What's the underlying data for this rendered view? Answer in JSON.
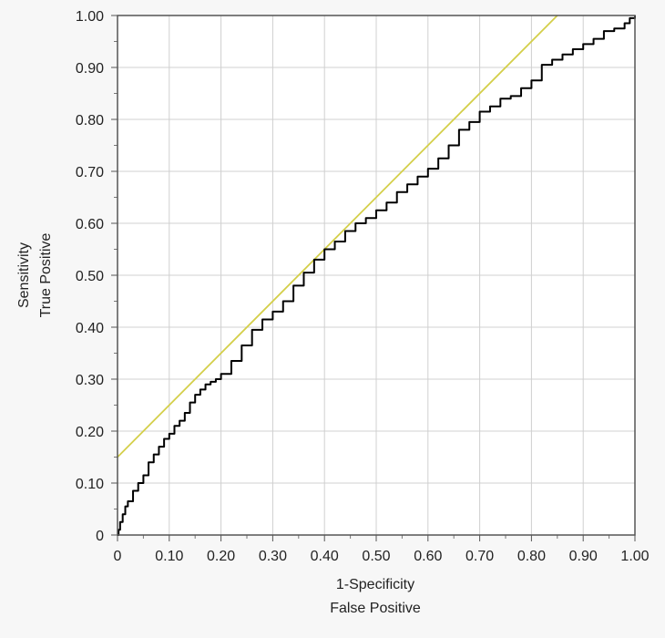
{
  "chart_data": {
    "type": "line",
    "title": "",
    "xlabel": [
      "1-Specificity",
      "False Positive"
    ],
    "ylabel": [
      "Sensitivity",
      "True Positive"
    ],
    "xlim": [
      0,
      1
    ],
    "ylim": [
      0,
      1
    ],
    "grid": true,
    "x_ticks": [
      "0",
      "0.10",
      "0.20",
      "0.30",
      "0.40",
      "0.50",
      "0.60",
      "0.70",
      "0.80",
      "0.90",
      "1.00"
    ],
    "y_ticks": [
      "0",
      "0.10",
      "0.20",
      "0.30",
      "0.40",
      "0.50",
      "0.60",
      "0.70",
      "0.80",
      "0.90",
      "1.00"
    ],
    "colors": {
      "roc": "#000000",
      "tangent": "#d4cf4a",
      "grid": "#d0d0d0",
      "plot_bg": "#ffffff"
    },
    "series": [
      {
        "role": "roc-curve",
        "x": [
          0,
          0.002,
          0.005,
          0.01,
          0.015,
          0.02,
          0.03,
          0.04,
          0.05,
          0.06,
          0.07,
          0.08,
          0.09,
          0.1,
          0.11,
          0.12,
          0.13,
          0.14,
          0.15,
          0.16,
          0.17,
          0.18,
          0.19,
          0.2,
          0.22,
          0.24,
          0.26,
          0.28,
          0.3,
          0.32,
          0.34,
          0.36,
          0.38,
          0.4,
          0.42,
          0.44,
          0.46,
          0.48,
          0.5,
          0.52,
          0.54,
          0.56,
          0.58,
          0.6,
          0.62,
          0.64,
          0.66,
          0.68,
          0.7,
          0.72,
          0.74,
          0.76,
          0.78,
          0.8,
          0.82,
          0.84,
          0.86,
          0.88,
          0.9,
          0.92,
          0.94,
          0.96,
          0.98,
          0.99,
          1.0
        ],
        "y": [
          0,
          0.01,
          0.025,
          0.04,
          0.055,
          0.065,
          0.085,
          0.1,
          0.115,
          0.14,
          0.155,
          0.17,
          0.185,
          0.195,
          0.21,
          0.22,
          0.235,
          0.255,
          0.27,
          0.28,
          0.29,
          0.295,
          0.3,
          0.31,
          0.335,
          0.365,
          0.395,
          0.415,
          0.43,
          0.45,
          0.48,
          0.505,
          0.53,
          0.55,
          0.565,
          0.585,
          0.6,
          0.61,
          0.625,
          0.64,
          0.66,
          0.675,
          0.69,
          0.705,
          0.725,
          0.75,
          0.78,
          0.795,
          0.815,
          0.825,
          0.84,
          0.845,
          0.86,
          0.875,
          0.905,
          0.915,
          0.925,
          0.935,
          0.945,
          0.955,
          0.97,
          0.975,
          0.985,
          0.995,
          1.0
        ]
      },
      {
        "role": "tangent-line",
        "x": [
          0,
          0.85
        ],
        "y": [
          0.15,
          1.0
        ]
      }
    ]
  }
}
